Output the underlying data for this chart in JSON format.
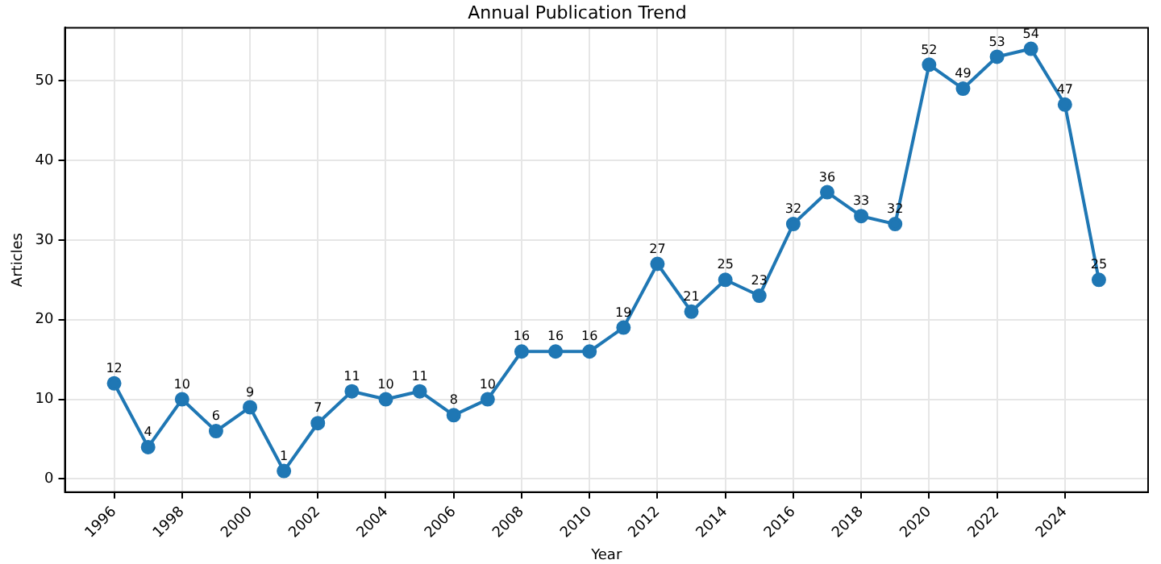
{
  "chart_data": {
    "type": "line",
    "title": "Annual Publication Trend",
    "xlabel": "Year",
    "ylabel": "Articles",
    "x": [
      1996,
      1997,
      1998,
      1999,
      2000,
      2001,
      2002,
      2003,
      2004,
      2005,
      2006,
      2007,
      2008,
      2009,
      2010,
      2011,
      2012,
      2013,
      2014,
      2015,
      2016,
      2017,
      2018,
      2019,
      2020,
      2021,
      2022,
      2023,
      2024,
      2025
    ],
    "series": [
      {
        "color": "#1f77b4",
        "values": [
          12,
          4,
          10,
          6,
          9,
          1,
          7,
          11,
          10,
          11,
          8,
          10,
          16,
          16,
          16,
          19,
          27,
          21,
          25,
          23,
          32,
          36,
          33,
          32,
          52,
          49,
          53,
          54,
          47,
          25
        ]
      }
    ],
    "xlim": [
      1994.55,
      2026.45
    ],
    "xticks": [
      1996,
      1998,
      2000,
      2002,
      2004,
      2006,
      2008,
      2010,
      2012,
      2014,
      2016,
      2018,
      2020,
      2022,
      2024
    ],
    "ylim": [
      -1.65,
      56.65
    ],
    "yticks": [
      0,
      10,
      20,
      30,
      40,
      50
    ],
    "grid": true,
    "marker": "circle",
    "line_style": "solid",
    "data_labels": true,
    "legend": false
  }
}
